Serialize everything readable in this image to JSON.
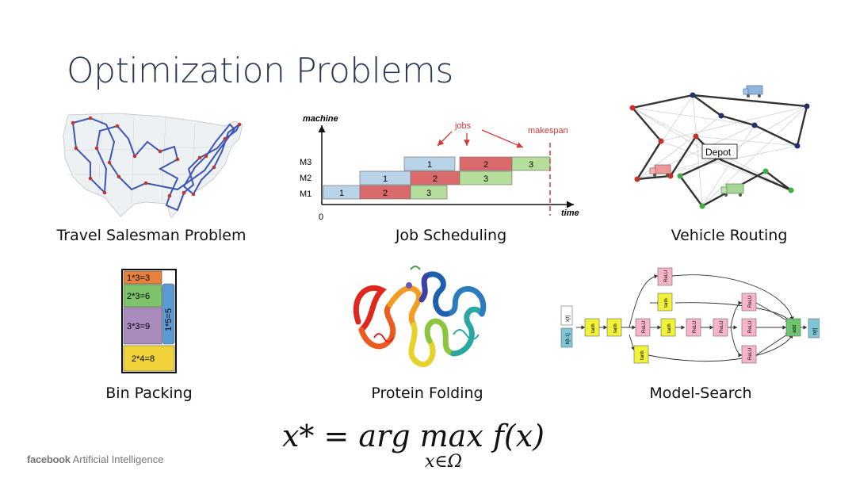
{
  "slide": {
    "title": "Optimization Problems",
    "captions": {
      "tsp": "Travel Salesman Problem",
      "job": "Job Scheduling",
      "vehicle": "Vehicle Routing",
      "bin": "Bin Packing",
      "protein": "Protein Folding",
      "model": "Model-Search"
    },
    "brand_logo": "facebook",
    "brand_text": "Artificial Intelligence",
    "formula": {
      "lhs": "x* = arg max f(x)",
      "sub": "x∈Ω"
    }
  },
  "job_scheduling": {
    "y_label": "machine",
    "x_label": "time",
    "origin": "0",
    "machines": [
      "M3",
      "M2",
      "M1"
    ],
    "jobs_label": "jobs",
    "makespan_label": "makespan",
    "blocks": [
      {
        "machine": "M1",
        "job": "1",
        "color": "#b9d3e8"
      },
      {
        "machine": "M1",
        "job": "2",
        "color": "#d9696b"
      },
      {
        "machine": "M1",
        "job": "3",
        "color": "#b6de9b"
      },
      {
        "machine": "M2",
        "job": "1",
        "color": "#b9d3e8"
      },
      {
        "machine": "M2",
        "job": "2",
        "color": "#d9696b"
      },
      {
        "machine": "M2",
        "job": "3",
        "color": "#b6de9b"
      },
      {
        "machine": "M3",
        "job": "1",
        "color": "#b9d3e8"
      },
      {
        "machine": "M3",
        "job": "2",
        "color": "#d9696b"
      },
      {
        "machine": "M3",
        "job": "3",
        "color": "#b6de9b"
      }
    ]
  },
  "vehicle_routing": {
    "depot_label": "Depot"
  },
  "bin_packing": {
    "items": [
      {
        "label": "1*3=3",
        "color": "#e8823a"
      },
      {
        "label": "2*3=6",
        "color": "#7cc36b"
      },
      {
        "label": "3*3=9",
        "color": "#a98bbd"
      },
      {
        "label": "2*4=8",
        "color": "#f0d33a"
      },
      {
        "label": "1*5=5",
        "color": "#5b9bd5"
      }
    ]
  },
  "model_search": {
    "inputs": [
      "x[t]",
      "h[t-1]"
    ],
    "output": "h[t]",
    "nodes": [
      "ReLU",
      "tanh",
      "tanh",
      "tanh",
      "ReLU",
      "tanh",
      "ReLU",
      "ReLU",
      "ReLU",
      "ReLU",
      "ReLU",
      "tanh",
      "add"
    ]
  }
}
